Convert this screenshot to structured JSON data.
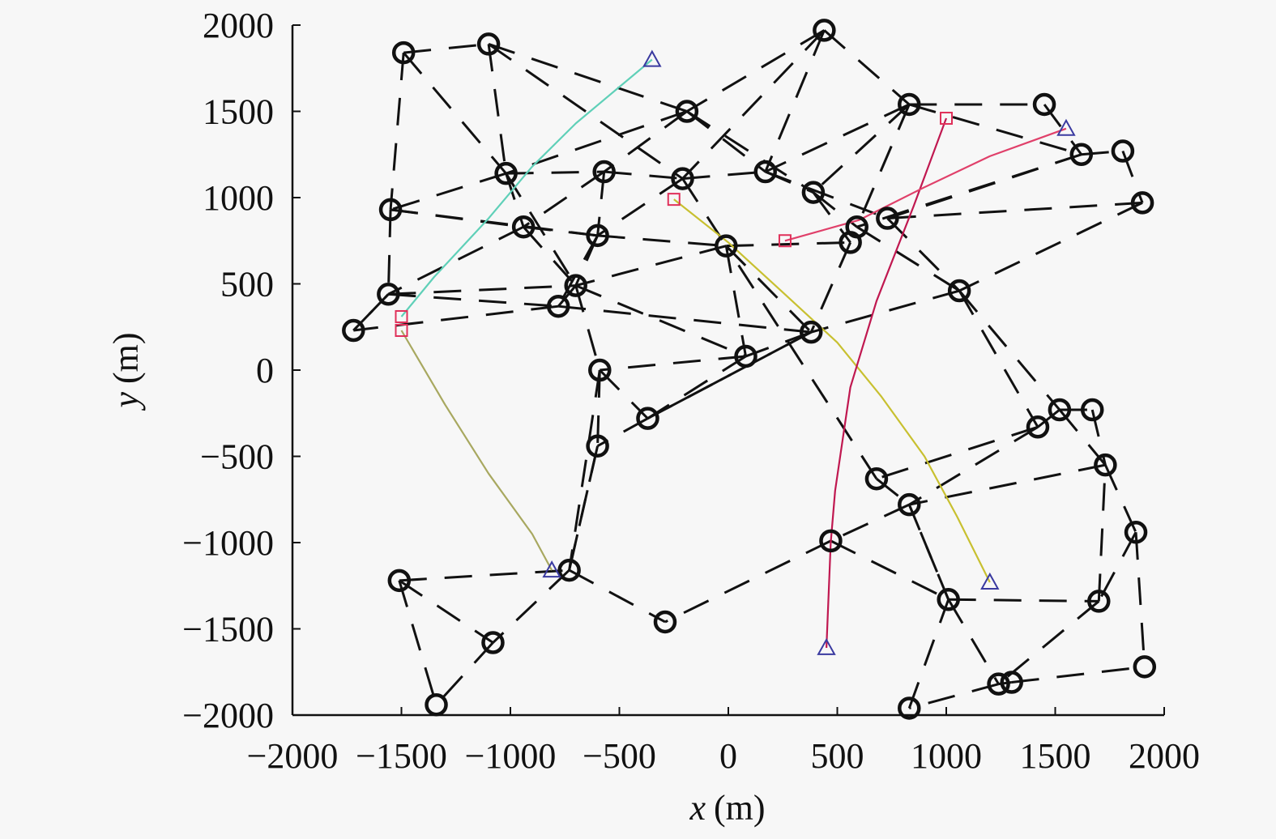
{
  "chart_data": {
    "type": "scatter",
    "title": "",
    "xlabel": "x (m)",
    "ylabel": "y (m)",
    "xlabel_var": "x",
    "ylabel_var": "y",
    "unit": "(m)",
    "xlim": [
      -2000,
      2000
    ],
    "ylim": [
      -2000,
      2000
    ],
    "xticks": [
      -2000,
      -1500,
      -1000,
      -500,
      0,
      500,
      1000,
      1500,
      2000
    ],
    "yticks": [
      -2000,
      -1500,
      -1000,
      -500,
      0,
      500,
      1000,
      1500,
      2000
    ],
    "xtick_labels": [
      "−2000",
      "−1500",
      "−1000",
      "−500",
      "0",
      "500",
      "1000",
      "1500",
      "2000"
    ],
    "ytick_labels": [
      "−2000",
      "−1500",
      "−1000",
      "−500",
      "0",
      "500",
      "1000",
      "1500",
      "2000"
    ],
    "grid": false,
    "legend": null,
    "nodes": {
      "marker": "circle",
      "color": "#111111",
      "points": [
        [
          -1490,
          1840
        ],
        [
          -1100,
          1890
        ],
        [
          440,
          1970
        ],
        [
          -190,
          1500
        ],
        [
          830,
          1540
        ],
        [
          1450,
          1540
        ],
        [
          1620,
          1250
        ],
        [
          1810,
          1270
        ],
        [
          1900,
          970
        ],
        [
          -1020,
          1140
        ],
        [
          -570,
          1150
        ],
        [
          -210,
          1110
        ],
        [
          170,
          1150
        ],
        [
          390,
          1030
        ],
        [
          -1550,
          930
        ],
        [
          -940,
          830
        ],
        [
          -600,
          780
        ],
        [
          -10,
          720
        ],
        [
          590,
          830
        ],
        [
          730,
          880
        ],
        [
          560,
          740
        ],
        [
          -1560,
          440
        ],
        [
          -700,
          490
        ],
        [
          -780,
          370
        ],
        [
          1060,
          460
        ],
        [
          -1720,
          230
        ],
        [
          380,
          220
        ],
        [
          80,
          80
        ],
        [
          -590,
          0
        ],
        [
          -370,
          -280
        ],
        [
          -600,
          -440
        ],
        [
          1420,
          -330
        ],
        [
          1520,
          -230
        ],
        [
          1670,
          -230
        ],
        [
          1730,
          -550
        ],
        [
          680,
          -630
        ],
        [
          830,
          -780
        ],
        [
          1870,
          -940
        ],
        [
          470,
          -990
        ],
        [
          1010,
          -1330
        ],
        [
          1700,
          -1340
        ],
        [
          -1510,
          -1220
        ],
        [
          -730,
          -1160
        ],
        [
          -290,
          -1460
        ],
        [
          -1080,
          -1580
        ],
        [
          -1340,
          -1940
        ],
        [
          1240,
          -1820
        ],
        [
          1300,
          -1810
        ],
        [
          1910,
          -1720
        ],
        [
          830,
          -1960
        ]
      ]
    },
    "links": {
      "style": "dashed",
      "color": "#111111",
      "pairs": [
        [
          0,
          1
        ],
        [
          0,
          14
        ],
        [
          0,
          9
        ],
        [
          1,
          3
        ],
        [
          1,
          9
        ],
        [
          1,
          11
        ],
        [
          2,
          3
        ],
        [
          2,
          4
        ],
        [
          2,
          12
        ],
        [
          2,
          11
        ],
        [
          3,
          10
        ],
        [
          3,
          12
        ],
        [
          3,
          9
        ],
        [
          3,
          13
        ],
        [
          4,
          5
        ],
        [
          4,
          13
        ],
        [
          4,
          12
        ],
        [
          4,
          18
        ],
        [
          4,
          6
        ],
        [
          5,
          6
        ],
        [
          6,
          7
        ],
        [
          7,
          8
        ],
        [
          6,
          18
        ],
        [
          6,
          19
        ],
        [
          8,
          24
        ],
        [
          8,
          19
        ],
        [
          9,
          10
        ],
        [
          9,
          15
        ],
        [
          9,
          14
        ],
        [
          9,
          22
        ],
        [
          10,
          11
        ],
        [
          10,
          16
        ],
        [
          10,
          15
        ],
        [
          11,
          12
        ],
        [
          11,
          17
        ],
        [
          11,
          16
        ],
        [
          12,
          13
        ],
        [
          12,
          19
        ],
        [
          13,
          18
        ],
        [
          13,
          20
        ],
        [
          14,
          21
        ],
        [
          14,
          15
        ],
        [
          14,
          16
        ],
        [
          15,
          16
        ],
        [
          15,
          22
        ],
        [
          15,
          21
        ],
        [
          16,
          22
        ],
        [
          16,
          17
        ],
        [
          16,
          23
        ],
        [
          17,
          20
        ],
        [
          17,
          26
        ],
        [
          17,
          27
        ],
        [
          17,
          22
        ],
        [
          18,
          24
        ],
        [
          19,
          24
        ],
        [
          20,
          26
        ],
        [
          21,
          25
        ],
        [
          21,
          22
        ],
        [
          21,
          23
        ],
        [
          22,
          23
        ],
        [
          22,
          28
        ],
        [
          22,
          27
        ],
        [
          23,
          25
        ],
        [
          23,
          26
        ],
        [
          24,
          26
        ],
        [
          24,
          31
        ],
        [
          24,
          32
        ],
        [
          26,
          27
        ],
        [
          26,
          29
        ],
        [
          27,
          28
        ],
        [
          27,
          29
        ],
        [
          28,
          29
        ],
        [
          28,
          30
        ],
        [
          29,
          30
        ],
        [
          29,
          26
        ],
        [
          30,
          42
        ],
        [
          31,
          32
        ],
        [
          31,
          35
        ],
        [
          31,
          36
        ],
        [
          32,
          33
        ],
        [
          33,
          34
        ],
        [
          32,
          34
        ],
        [
          34,
          36
        ],
        [
          34,
          37
        ],
        [
          35,
          36
        ],
        [
          35,
          17
        ],
        [
          36,
          38
        ],
        [
          36,
          39
        ],
        [
          37,
          40
        ],
        [
          37,
          48
        ],
        [
          38,
          43
        ],
        [
          38,
          39
        ],
        [
          39,
          40
        ],
        [
          39,
          46
        ],
        [
          39,
          36
        ],
        [
          40,
          46
        ],
        [
          40,
          34
        ],
        [
          41,
          42
        ],
        [
          41,
          44
        ],
        [
          41,
          45
        ],
        [
          42,
          44
        ],
        [
          42,
          43
        ],
        [
          42,
          30
        ],
        [
          44,
          45
        ],
        [
          46,
          47
        ],
        [
          46,
          49
        ],
        [
          47,
          48
        ],
        [
          49,
          39
        ],
        [
          28,
          42
        ],
        [
          25,
          21
        ]
      ]
    },
    "trajectories": [
      {
        "name": "path-cyan",
        "color": "#5fd0b8",
        "start_marker": "square",
        "start_marker_color": "#e0305a",
        "end_marker": "triangle",
        "end_marker_color": "#3a3aa0",
        "points": [
          [
            -1500,
            310
          ],
          [
            -1350,
            540
          ],
          [
            -1100,
            880
          ],
          [
            -900,
            1180
          ],
          [
            -700,
            1430
          ],
          [
            -350,
            1800
          ]
        ]
      },
      {
        "name": "path-olive",
        "color": "#a8a860",
        "start_marker": "square",
        "start_marker_color": "#e0305a",
        "end_marker": "triangle",
        "end_marker_color": "#3a3aa0",
        "points": [
          [
            -1500,
            230
          ],
          [
            -1300,
            -200
          ],
          [
            -1100,
            -600
          ],
          [
            -900,
            -950
          ],
          [
            -810,
            -1160
          ]
        ]
      },
      {
        "name": "path-yellow",
        "color": "#c8c030",
        "start_marker": "square",
        "start_marker_color": "#e0305a",
        "end_marker": "triangle",
        "end_marker_color": "#3a3aa0",
        "points": [
          [
            -250,
            990
          ],
          [
            0,
            740
          ],
          [
            250,
            450
          ],
          [
            500,
            160
          ],
          [
            700,
            -150
          ],
          [
            900,
            -500
          ],
          [
            1050,
            -850
          ],
          [
            1200,
            -1230
          ]
        ]
      },
      {
        "name": "path-crimson",
        "color": "#c01850",
        "start_marker": "square",
        "start_marker_color": "#e0305a",
        "end_marker": "triangle",
        "end_marker_color": "#3a3aa0",
        "points": [
          [
            1000,
            1460
          ],
          [
            850,
            950
          ],
          [
            680,
            400
          ],
          [
            560,
            -100
          ],
          [
            490,
            -700
          ],
          [
            470,
            -1000
          ],
          [
            450,
            -1610
          ]
        ]
      },
      {
        "name": "path-pink",
        "color": "#e0406a",
        "start_marker": "square",
        "start_marker_color": "#e0305a",
        "end_marker": "triangle",
        "end_marker_color": "#3a3aa0",
        "points": [
          [
            260,
            750
          ],
          [
            600,
            870
          ],
          [
            900,
            1060
          ],
          [
            1200,
            1240
          ],
          [
            1550,
            1400
          ]
        ]
      }
    ]
  }
}
